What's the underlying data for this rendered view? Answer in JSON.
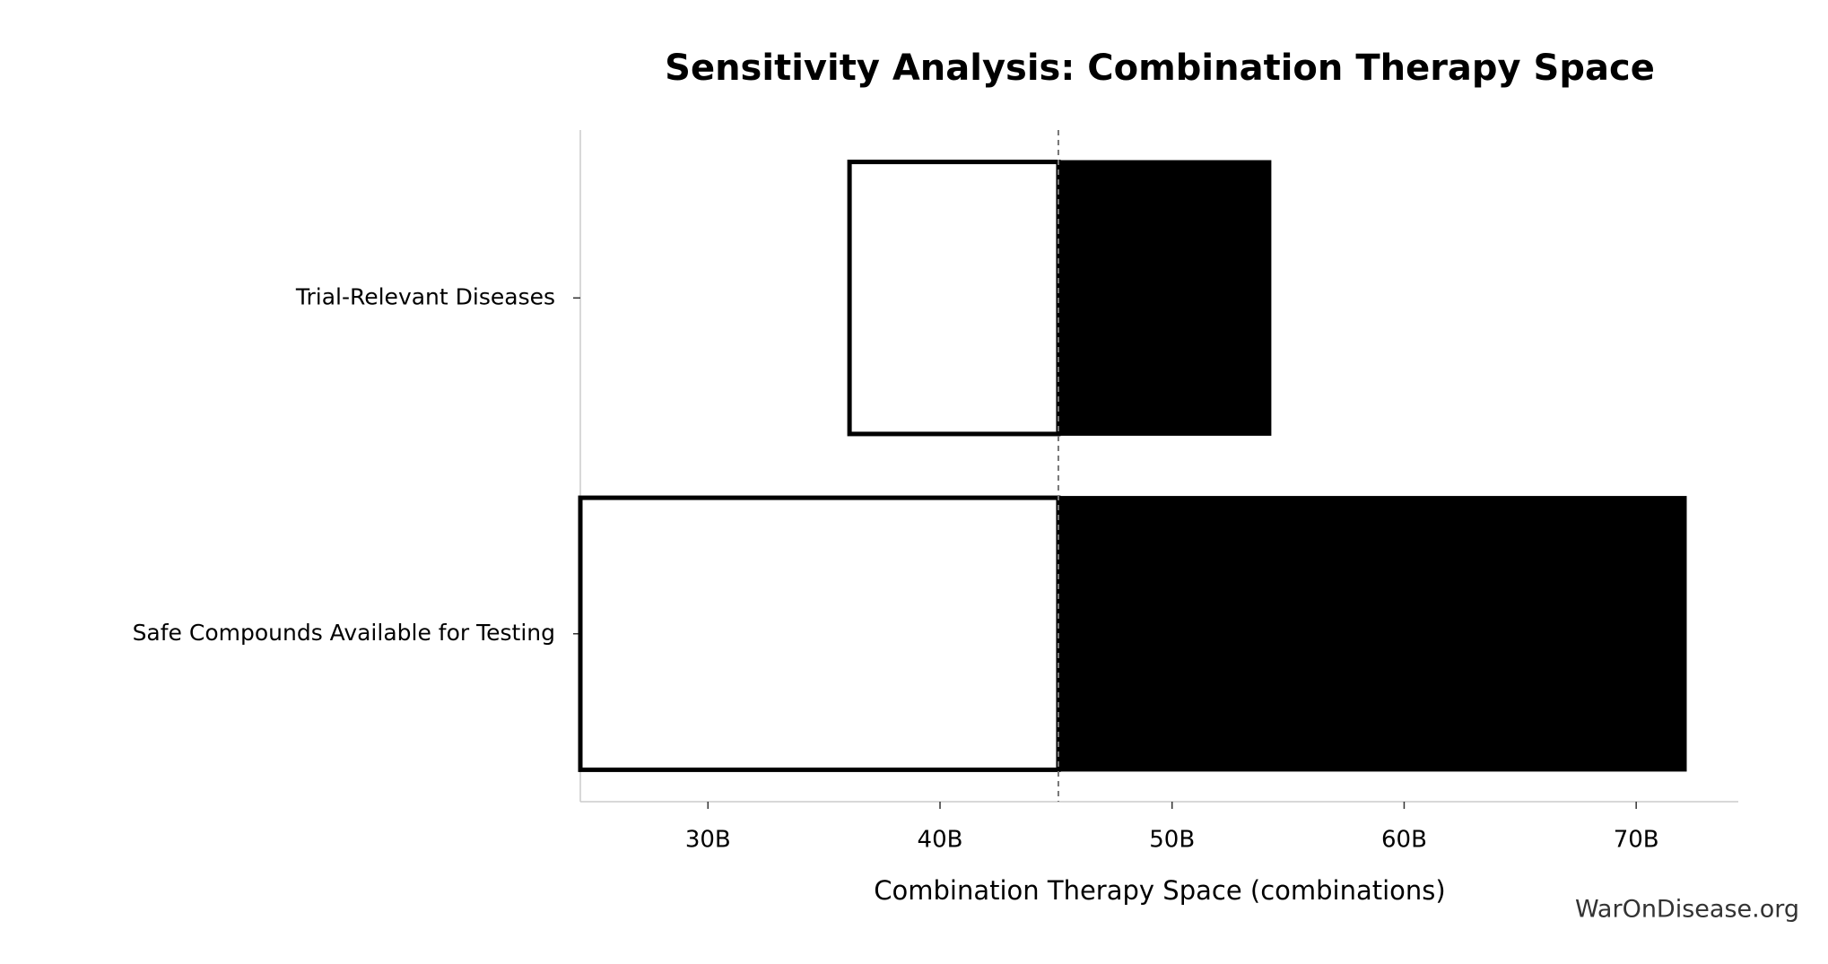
{
  "chart_data": {
    "type": "tornado",
    "title": "Sensitivity Analysis: Combination Therapy Space",
    "xlabel": "Combination Therapy Space (combinations)",
    "categories": [
      "Trial-Relevant Diseases",
      "Safe Compounds Available for Testing"
    ],
    "baseline": 45.1,
    "values_low": [
      36.1,
      24.5
    ],
    "values_high": [
      54.2,
      72.1
    ],
    "color_low": "#ffffff",
    "color_high": "#000000",
    "xlim": [
      24.5,
      74.4
    ],
    "xticks": [
      {
        "value": 30,
        "label": "30B"
      },
      {
        "value": 40,
        "label": "40B"
      },
      {
        "value": 50,
        "label": "50B"
      },
      {
        "value": 60,
        "label": "60B"
      },
      {
        "value": 70,
        "label": "70B"
      }
    ],
    "watermark": "WarOnDisease.org"
  }
}
